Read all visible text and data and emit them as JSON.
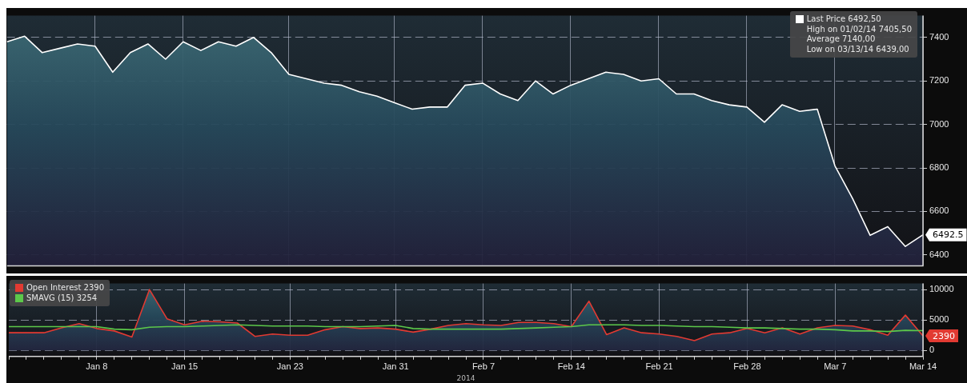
{
  "chart_data": [
    {
      "type": "area",
      "categories": [
        null,
        null,
        null,
        null,
        null,
        "Jan 8",
        null,
        null,
        null,
        null,
        "Jan 15",
        null,
        null,
        null,
        null,
        null,
        "Jan 23",
        null,
        null,
        null,
        null,
        null,
        "Jan 31",
        null,
        null,
        null,
        null,
        "Feb 7",
        null,
        null,
        null,
        null,
        "Feb 14",
        null,
        null,
        null,
        null,
        "Feb 21",
        null,
        null,
        null,
        null,
        "Feb 28",
        null,
        null,
        null,
        null,
        "Mar 7",
        null,
        null,
        null,
        null,
        "Mar 14"
      ],
      "series": [
        {
          "name": "Last Price 6492,50",
          "color": "#ffffff",
          "values": [
            7380,
            7405.5,
            7330,
            7350,
            7370,
            7360,
            7240,
            7330,
            7370,
            7300,
            7380,
            7340,
            7380,
            7360,
            7400,
            7330,
            7230,
            7210,
            7190,
            7180,
            7150,
            7130,
            7100,
            7070,
            7080,
            7080,
            7180,
            7190,
            7140,
            7110,
            7200,
            7140,
            7180,
            7210,
            7240,
            7230,
            7200,
            7210,
            7140,
            7140,
            7110,
            7090,
            7080,
            7010,
            7090,
            7060,
            7070,
            6810,
            6660,
            6490,
            6530,
            6439,
            6492.5
          ]
        }
      ],
      "ylim": [
        6350,
        7500
      ],
      "yticks": [
        6400,
        6600,
        6800,
        7000,
        7200,
        7400
      ],
      "annotations": [
        "High on 01/02/14 7405,50",
        "Average 7140,00",
        "Low on 03/13/14 6439,00",
        {
          "text": "6492.5",
          "x": "Mar 14",
          "y": 6492.5
        }
      ],
      "grid": true,
      "legend": "top right",
      "marker": "none",
      "tick_labels": "y"
    },
    {
      "type": "line",
      "categories": [
        null,
        null,
        null,
        null,
        null,
        "Jan 8",
        null,
        null,
        null,
        null,
        "Jan 15",
        null,
        null,
        null,
        null,
        null,
        "Jan 23",
        null,
        null,
        null,
        null,
        null,
        "Jan 31",
        null,
        null,
        null,
        null,
        "Feb 7",
        null,
        null,
        null,
        null,
        "Feb 14",
        null,
        null,
        null,
        null,
        "Feb 21",
        null,
        null,
        null,
        null,
        "Feb 28",
        null,
        null,
        null,
        null,
        "Mar 7",
        null,
        null,
        null,
        null,
        "Mar 14"
      ],
      "series": [
        {
          "name": "Open Interest 2390",
          "type": "area",
          "color": "#e23a32",
          "values": [
            2900,
            2900,
            2900,
            3700,
            4400,
            3600,
            3200,
            2200,
            10000,
            5200,
            4200,
            4800,
            4700,
            4500,
            2300,
            2700,
            2500,
            2500,
            3400,
            3900,
            3600,
            3700,
            3500,
            3000,
            3500,
            4100,
            4400,
            4200,
            4100,
            4600,
            4600,
            4400,
            3900,
            8100,
            2600,
            3700,
            2900,
            2700,
            2300,
            1600,
            2700,
            2900,
            3600,
            2900,
            3700,
            2700,
            3700,
            4100,
            4000,
            3400,
            2500,
            5800,
            2390
          ]
        },
        {
          "name": "SMAVG (15) 3254",
          "color": "#5cc84a",
          "values": [
            3900,
            3900,
            3900,
            3900,
            3900,
            3900,
            3500,
            3400,
            3800,
            3900,
            3900,
            4000,
            4100,
            4200,
            4100,
            4000,
            4000,
            4000,
            3900,
            3900,
            3900,
            4000,
            4100,
            3600,
            3500,
            3500,
            3500,
            3500,
            3500,
            3600,
            3700,
            3800,
            3900,
            4200,
            4200,
            4200,
            4100,
            4100,
            4000,
            3900,
            3900,
            3800,
            3700,
            3700,
            3600,
            3500,
            3500,
            3400,
            3200,
            3200,
            3100,
            3300,
            3254
          ]
        }
      ],
      "ylim": [
        -1000,
        11000
      ],
      "yticks": [
        0,
        5000,
        10000
      ],
      "annotations": [
        "2014",
        {
          "text": "2390",
          "x": "Mar 14",
          "y": 2390
        }
      ],
      "grid": true,
      "legend": "top left",
      "marker": "none"
    }
  ]
}
